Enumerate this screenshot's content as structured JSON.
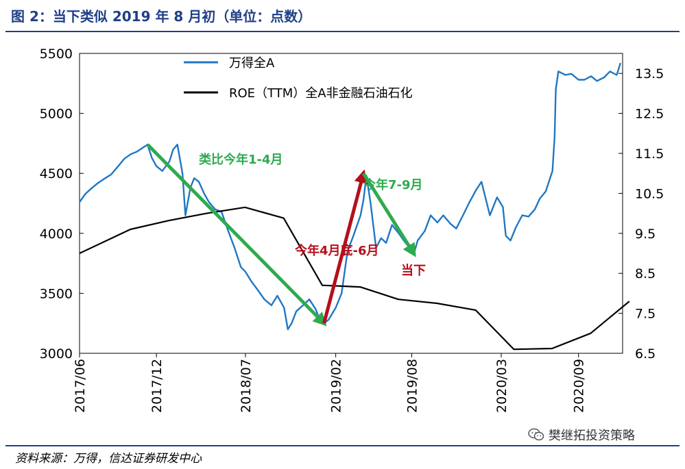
{
  "header": {
    "title": "图 2：当下类似 2019 年 8 月初（单位：点数）"
  },
  "footer": {
    "source": "资料来源：万得，信达证券研发中心",
    "watermark": "樊继拓投资策略",
    "watermark_icon": "wechat-icon"
  },
  "chart_data": {
    "type": "line",
    "title": "图 2：当下类似 2019 年 8 月初（单位：点数）",
    "x_axis": {
      "type": "date",
      "range": [
        "2017-06",
        "2020-12"
      ],
      "tick_labels": [
        "2017/06",
        "2017/12",
        "2018/07",
        "2019/02",
        "2019/08",
        "2020/03",
        "2020/09"
      ],
      "tick_dates": [
        "2017-06-01",
        "2017-12-01",
        "2018-07-01",
        "2019-02-01",
        "2019-08-01",
        "2020-03-01",
        "2020-09-01"
      ]
    },
    "y_left": {
      "range": [
        3000,
        5500
      ],
      "tick_labels": [
        "3000",
        "3500",
        "4000",
        "4500",
        "5000",
        "5500"
      ],
      "ticks": [
        3000,
        3500,
        4000,
        4500,
        5000,
        5500
      ]
    },
    "y_right": {
      "range": [
        6.5,
        14
      ],
      "tick_labels": [
        "6.5",
        "7.5",
        "8.5",
        "9.5",
        "10.5",
        "11.5",
        "12.5",
        "13.5"
      ],
      "ticks": [
        6.5,
        7.5,
        8.5,
        9.5,
        10.5,
        11.5,
        12.5,
        13.5
      ]
    },
    "legend": {
      "placement": "top-left"
    },
    "series": [
      {
        "name": "万得全A",
        "axis": "left",
        "color": "#1f77c4",
        "x": [
          "2017-06-01",
          "2017-06-15",
          "2017-07-01",
          "2017-07-15",
          "2017-08-01",
          "2017-08-15",
          "2017-09-01",
          "2017-09-15",
          "2017-10-01",
          "2017-10-15",
          "2017-11-01",
          "2017-11-10",
          "2017-11-20",
          "2017-12-01",
          "2017-12-15",
          "2018-01-01",
          "2018-01-10",
          "2018-01-20",
          "2018-02-01",
          "2018-02-08",
          "2018-02-20",
          "2018-03-01",
          "2018-03-12",
          "2018-03-25",
          "2018-04-05",
          "2018-04-20",
          "2018-05-05",
          "2018-05-20",
          "2018-06-05",
          "2018-06-20",
          "2018-07-01",
          "2018-07-15",
          "2018-08-01",
          "2018-08-15",
          "2018-09-01",
          "2018-09-15",
          "2018-10-01",
          "2018-10-10",
          "2018-10-19",
          "2018-10-30",
          "2018-11-15",
          "2018-11-30",
          "2018-12-15",
          "2018-12-25",
          "2019-01-04",
          "2019-01-15",
          "2019-02-01",
          "2019-02-15",
          "2019-03-01",
          "2019-03-15",
          "2019-04-01",
          "2019-04-08",
          "2019-04-15",
          "2019-04-25",
          "2019-05-08",
          "2019-05-20",
          "2019-06-01",
          "2019-06-15",
          "2019-07-01",
          "2019-07-15",
          "2019-08-01",
          "2019-08-06",
          "2019-08-15",
          "2019-09-01",
          "2019-09-15",
          "2019-10-01",
          "2019-10-15",
          "2019-11-01",
          "2019-11-15",
          "2019-12-01",
          "2019-12-15",
          "2020-01-01",
          "2020-01-14",
          "2020-02-03",
          "2020-02-20",
          "2020-03-05",
          "2020-03-12",
          "2020-03-23",
          "2020-04-05",
          "2020-04-20",
          "2020-05-05",
          "2020-05-20",
          "2020-06-01",
          "2020-06-15",
          "2020-07-01",
          "2020-07-06",
          "2020-07-09",
          "2020-07-15",
          "2020-08-01",
          "2020-08-15",
          "2020-09-01",
          "2020-09-15",
          "2020-10-01",
          "2020-10-15",
          "2020-11-01",
          "2020-11-15",
          "2020-12-01",
          "2020-12-10"
        ],
        "y": [
          4260,
          4330,
          4380,
          4420,
          4460,
          4490,
          4560,
          4620,
          4660,
          4680,
          4720,
          4740,
          4630,
          4560,
          4520,
          4600,
          4700,
          4740,
          4500,
          4150,
          4380,
          4460,
          4430,
          4330,
          4260,
          4200,
          4180,
          4030,
          3880,
          3720,
          3680,
          3600,
          3520,
          3450,
          3400,
          3480,
          3380,
          3200,
          3250,
          3350,
          3400,
          3450,
          3370,
          3280,
          3250,
          3280,
          3380,
          3500,
          3850,
          3980,
          4150,
          4280,
          4480,
          4250,
          3880,
          3960,
          3920,
          4070,
          4000,
          3930,
          3860,
          3830,
          3940,
          4020,
          4150,
          4090,
          4150,
          4080,
          4040,
          4150,
          4250,
          4360,
          4430,
          4150,
          4300,
          4220,
          3980,
          3940,
          4050,
          4150,
          4140,
          4200,
          4290,
          4350,
          4520,
          4800,
          5200,
          5350,
          5320,
          5330,
          5280,
          5280,
          5310,
          5270,
          5300,
          5350,
          5320,
          5420
        ]
      },
      {
        "name": "ROE（TTM）全A非金融石油石化",
        "axis": "right",
        "color": "#000000",
        "x": [
          "2017-06-01",
          "2017-09-30",
          "2017-12-31",
          "2018-03-31",
          "2018-06-30",
          "2018-09-30",
          "2018-12-31",
          "2019-03-31",
          "2019-06-30",
          "2019-09-30",
          "2019-12-31",
          "2020-03-31",
          "2020-06-30",
          "2020-09-30",
          "2020-12-31"
        ],
        "y": [
          9.0,
          9.6,
          9.82,
          10.0,
          10.15,
          9.88,
          8.2,
          8.16,
          7.85,
          7.75,
          7.58,
          6.6,
          6.62,
          7.0,
          7.8
        ]
      }
    ],
    "annotations": [
      {
        "text": "类比今年1-4月",
        "color": "#2eaa4f",
        "arrow_from": {
          "x": "2017-11-10",
          "y": 4740
        },
        "arrow_to": {
          "x": "2019-01-04",
          "y": 3250
        }
      },
      {
        "text": "今年4月底-6月",
        "color": "#b50f1a",
        "arrow_from": {
          "x": "2019-01-04",
          "y": 3250
        },
        "arrow_to": {
          "x": "2019-04-08",
          "y": 4500
        }
      },
      {
        "text": "今年7-9月",
        "color": "#2eaa4f",
        "arrow_from": {
          "x": "2019-04-08",
          "y": 4500
        },
        "arrow_to": {
          "x": "2019-08-06",
          "y": 3830
        }
      },
      {
        "text": "当下",
        "color": "#b50f1a"
      }
    ]
  }
}
